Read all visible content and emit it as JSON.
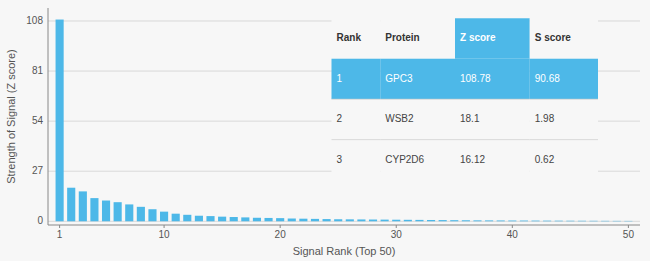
{
  "chart_data": {
    "type": "bar",
    "x": [
      1,
      2,
      3,
      4,
      5,
      6,
      7,
      8,
      9,
      10,
      11,
      12,
      13,
      14,
      15,
      16,
      17,
      18,
      19,
      20,
      21,
      22,
      23,
      24,
      25,
      26,
      27,
      28,
      29,
      30,
      31,
      32,
      33,
      34,
      35,
      36,
      37,
      38,
      39,
      40,
      41,
      42,
      43,
      44,
      45,
      46,
      47,
      48,
      49,
      50
    ],
    "values": [
      108.78,
      18.1,
      16.12,
      12.5,
      11.2,
      10.3,
      9.1,
      7.8,
      6.5,
      5.2,
      4.1,
      3.5,
      3.0,
      2.8,
      2.5,
      2.3,
      2.1,
      1.9,
      1.8,
      1.7,
      1.5,
      1.4,
      1.3,
      1.2,
      1.1,
      1.05,
      1.0,
      0.95,
      0.9,
      0.85,
      0.8,
      0.75,
      0.7,
      0.65,
      0.6,
      0.55,
      0.5,
      0.48,
      0.45,
      0.42,
      0.4,
      0.38,
      0.35,
      0.33,
      0.3,
      0.28,
      0.26,
      0.24,
      0.22,
      0.2
    ],
    "color": "#4db8e8",
    "xlabel": "Signal Rank (Top 50)",
    "ylabel": "Strength of Signal (Z score)",
    "xlim": [
      0,
      51
    ],
    "xticks": [
      1,
      10,
      20,
      30,
      40,
      50
    ],
    "ylim": [
      -2,
      115
    ],
    "yticks": [
      0,
      27,
      54,
      81,
      108
    ],
    "grid": true,
    "table": [
      [
        "Rank",
        "Protein",
        "Z score",
        "S score"
      ],
      [
        "1",
        "GPC3",
        "108.78",
        "90.68"
      ],
      [
        "2",
        "WSB2",
        "18.1",
        "1.98"
      ],
      [
        "3",
        "CYP2D6",
        "16.12",
        "0.62"
      ]
    ]
  }
}
